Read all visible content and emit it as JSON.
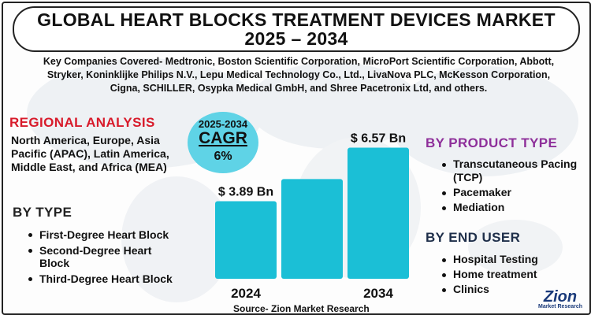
{
  "title": {
    "line1": "GLOBAL HEART BLOCKS TREATMENT DEVICES MARKET",
    "line2": "2025 – 2034"
  },
  "companies": "Key Companies Covered- Medtronic, Boston Scientific Corporation, MicroPort Scientific Corporation, Abbott, Stryker, Koninklijke Philips N.V., Lepu Medical Technology Co., Ltd., LivaNova PLC, McKesson Corporation, Cigna, SCHILLER, Osypka Medical GmbH, and Shree Pacetronix Ltd, and others.",
  "regional": {
    "heading": "REGIONAL ANALYSIS",
    "text": "North America, Europe, Asia Pacific (APAC), Latin America, Middle East, and Africa (MEA)"
  },
  "by_type": {
    "heading": "BY TYPE",
    "items": [
      "First-Degree Heart Block",
      "Second-Degree Heart Block",
      "Third-Degree Heart Block"
    ]
  },
  "cagr": {
    "period": "2025-2034",
    "label": "CAGR",
    "value": "6%"
  },
  "by_product": {
    "heading": "BY PRODUCT TYPE",
    "items": [
      "Transcutaneous Pacing (TCP)",
      "Pacemaker",
      "Mediation"
    ]
  },
  "by_end_user": {
    "heading": "BY END USER",
    "items": [
      "Hospital Testing",
      "Home treatment",
      "Clinics"
    ]
  },
  "source": "Source- Zion Market Research",
  "logo": {
    "name": "Zion",
    "sub": "Market Research"
  },
  "colors": {
    "bar": "#1bbfd6",
    "title_red": "#d81b2b",
    "cagr_circle": "#5fd3e6",
    "purple": "#8e2f9a"
  },
  "chart_data": {
    "type": "bar",
    "title": "",
    "categories": [
      "2024",
      "",
      "2034"
    ],
    "values": [
      3.89,
      5.0,
      6.57
    ],
    "value_labels": [
      "$ 3.89 Bn",
      "",
      "$ 6.57 Bn"
    ],
    "unit": "USD Bn",
    "ylim": [
      0,
      7.5
    ],
    "grid": false
  }
}
